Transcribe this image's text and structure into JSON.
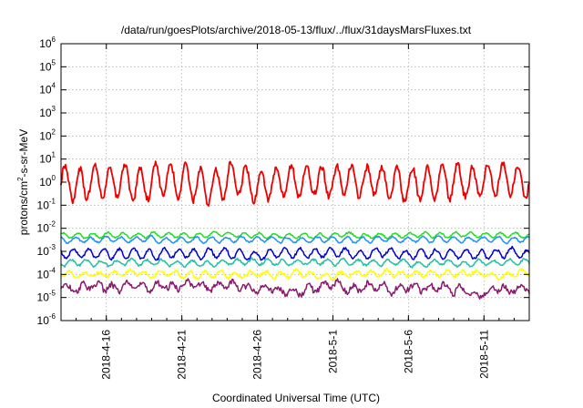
{
  "chart_data": {
    "type": "line",
    "title": "/data/run/goesPlots/archive/2018-05-13/flux/../flux/31daysMarsFluxes.txt",
    "xlabel": "Coordinated Universal Time (UTC)",
    "ylabel": {
      "prefix": "protons/cm",
      "sup": "2",
      "suffix": "-s-sr-MeV"
    },
    "y_scale": "log",
    "ylim_exp": [
      -6,
      6
    ],
    "y_tick_base": "10",
    "y_ticks_exp": [
      "-6",
      "-5",
      "-4",
      "-3",
      "-2",
      "-1",
      "0",
      "1",
      "2",
      "3",
      "4",
      "5",
      "6"
    ],
    "x_range": [
      "2018-04-13",
      "2018-05-14"
    ],
    "x_ticks": [
      {
        "date": "2018-04-16",
        "label": "2018-4-16"
      },
      {
        "date": "2018-04-21",
        "label": "2018-4-21"
      },
      {
        "date": "2018-04-26",
        "label": "2018-4-26"
      },
      {
        "date": "2018-05-01",
        "label": "2018-5-1"
      },
      {
        "date": "2018-05-06",
        "label": "2018-5-6"
      },
      {
        "date": "2018-05-11",
        "label": "2018-5-11"
      }
    ],
    "grid": true,
    "series": [
      {
        "color": "#ee0000",
        "base_log": 0.0,
        "amp": 0.7,
        "period": 1.0,
        "noise": 0.25
      },
      {
        "color": "#22dd22",
        "base_log": -2.3,
        "amp": 0.1,
        "period": 1.0,
        "noise": 0.06
      },
      {
        "color": "#1e8fff",
        "base_log": -2.5,
        "amp": 0.12,
        "period": 1.0,
        "noise": 0.06
      },
      {
        "color": "#0000cc",
        "base_log": -3.1,
        "amp": 0.2,
        "period": 1.0,
        "noise": 0.1
      },
      {
        "color": "#20c0a0",
        "base_log": -3.5,
        "amp": 0.12,
        "period": 1.0,
        "noise": 0.08
      },
      {
        "color": "#ffff00",
        "base_log": -4.0,
        "amp": 0.12,
        "period": 1.0,
        "noise": 0.12
      },
      {
        "color": "#8b1a6b",
        "base_log": -4.6,
        "amp": 0.15,
        "period": 1.0,
        "noise": 0.22
      }
    ]
  }
}
